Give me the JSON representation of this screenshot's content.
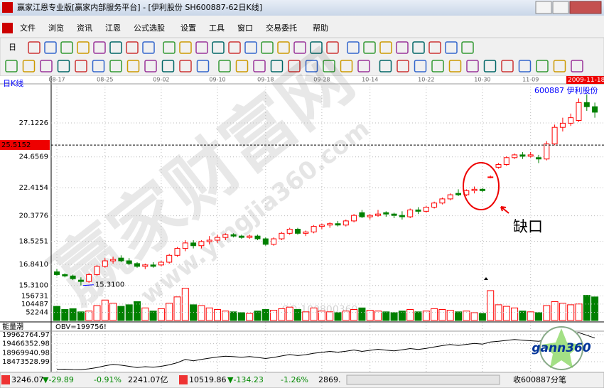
{
  "window": {
    "title": "赢家江恩专业版[赢家内部服务平台] - [伊利股份   SH600887-62日K线]"
  },
  "menu": [
    "文件",
    "浏览",
    "资讯",
    "江恩",
    "公式选股",
    "设置",
    "工具",
    "窗口",
    "交易委托",
    "帮助"
  ],
  "toolbar": {
    "period": "日"
  },
  "watermark": {
    "site": "赢家财富网",
    "url": "www.yingjia360.com",
    "qq": "QQ:100800360",
    "logo": "gann360"
  },
  "status_bar": {
    "sh_index": "3246.07",
    "sh_change": "▼-29.89",
    "sh_pct": "-0.91%",
    "sh_amount": "2241.07亿",
    "sz_index": "10519.86",
    "sz_change": "▼-134.23",
    "sz_pct": "-1.26%",
    "sz_amount": "2869.",
    "tick_info": "收600887分笔"
  },
  "chart_data": {
    "type": "candlestick",
    "title": "日K线",
    "stock_label": "600887  伊利股份",
    "categories": [
      "08-17",
      null,
      null,
      null,
      null,
      null,
      "08-25",
      null,
      null,
      null,
      null,
      null,
      null,
      "09-02",
      null,
      null,
      null,
      null,
      null,
      null,
      "09-10",
      null,
      null,
      null,
      null,
      null,
      "09-18",
      null,
      null,
      null,
      null,
      null,
      null,
      "09-28",
      null,
      null,
      null,
      null,
      null,
      "10-14",
      null,
      null,
      null,
      null,
      null,
      null,
      "10-22",
      null,
      null,
      null,
      null,
      null,
      null,
      "10-30",
      null,
      null,
      null,
      null,
      null,
      "11-09",
      null,
      null,
      null,
      null,
      null,
      null,
      null,
      null
    ],
    "open": [
      16.3,
      16.1,
      16.0,
      15.7,
      15.6,
      16.1,
      16.7,
      17.1,
      17.3,
      17.1,
      16.9,
      16.7,
      16.8,
      16.8,
      17.0,
      17.5,
      18.0,
      18.4,
      18.2,
      18.5,
      18.6,
      18.8,
      19.0,
      18.9,
      18.8,
      18.9,
      18.7,
      18.3,
      18.7,
      19.1,
      19.4,
      19.1,
      19.2,
      19.6,
      19.7,
      19.8,
      19.7,
      20.0,
      20.6,
      20.3,
      20.4,
      20.6,
      20.5,
      20.4,
      20.3,
      20.8,
      20.7,
      21.0,
      21.3,
      21.6,
      22.0,
      21.9,
      22.2,
      22.3,
      23.2,
      23.9,
      24.1,
      24.6,
      24.8,
      24.7,
      24.6,
      24.5,
      25.6,
      26.8,
      27.1,
      27.3,
      28.6,
      28.3
    ],
    "high": [
      16.5,
      16.2,
      16.1,
      15.9,
      16.2,
      16.8,
      17.3,
      17.4,
      17.5,
      17.3,
      17.0,
      16.9,
      17.0,
      17.1,
      17.6,
      18.1,
      18.6,
      18.6,
      18.6,
      18.9,
      19.0,
      19.1,
      19.1,
      19.0,
      19.0,
      19.0,
      18.8,
      18.8,
      19.2,
      19.5,
      19.5,
      19.3,
      19.7,
      19.8,
      19.9,
      20.0,
      20.1,
      20.5,
      20.8,
      20.5,
      20.8,
      20.7,
      20.6,
      20.7,
      20.9,
      21.0,
      21.1,
      21.4,
      21.7,
      22.0,
      22.3,
      22.3,
      22.5,
      22.4,
      23.3,
      24.2,
      24.7,
      24.9,
      25.0,
      25.0,
      24.8,
      25.8,
      27.0,
      27.5,
      27.8,
      28.9,
      29.2,
      28.6
    ],
    "low": [
      16.0,
      15.9,
      15.7,
      15.31,
      15.5,
      16.0,
      16.6,
      16.9,
      17.0,
      16.8,
      16.6,
      16.5,
      16.6,
      16.7,
      16.9,
      17.4,
      17.8,
      18.0,
      18.0,
      18.3,
      18.4,
      18.6,
      18.8,
      18.7,
      18.7,
      18.6,
      18.2,
      18.2,
      18.6,
      19.0,
      19.0,
      18.9,
      19.1,
      19.4,
      19.5,
      19.6,
      19.6,
      19.9,
      20.2,
      20.1,
      20.3,
      20.3,
      20.2,
      20.1,
      20.2,
      20.5,
      20.6,
      20.9,
      21.2,
      21.5,
      21.8,
      21.8,
      22.0,
      22.1,
      23.1,
      23.8,
      24.0,
      24.5,
      24.5,
      24.6,
      24.2,
      24.4,
      25.5,
      26.5,
      26.9,
      27.2,
      28.0,
      27.5
    ],
    "close": [
      16.1,
      16.0,
      15.8,
      15.6,
      16.1,
      16.7,
      17.1,
      17.2,
      17.1,
      16.9,
      16.7,
      16.8,
      16.7,
      17.0,
      17.5,
      18.0,
      18.4,
      18.2,
      18.5,
      18.6,
      18.8,
      19.0,
      18.9,
      18.8,
      18.9,
      18.7,
      18.3,
      18.7,
      19.1,
      19.4,
      19.1,
      19.2,
      19.6,
      19.7,
      19.8,
      19.7,
      20.0,
      20.4,
      20.3,
      20.4,
      20.5,
      20.5,
      20.4,
      20.3,
      20.8,
      20.7,
      21.0,
      21.3,
      21.6,
      21.9,
      21.9,
      22.2,
      22.3,
      22.2,
      23.2,
      24.1,
      24.6,
      24.8,
      24.7,
      24.8,
      24.5,
      25.6,
      26.8,
      27.1,
      27.5,
      28.6,
      28.3,
      27.9
    ],
    "up_color": "#ff0000",
    "down_color": "#008000",
    "ylim": [
      15.14,
      29.96
    ],
    "yticks": [
      {
        "value": 15.31,
        "label": "15.3100"
      },
      {
        "value": 16.841,
        "label": "16.8410"
      },
      18.5251,
      20.3776,
      22.4154,
      24.6569,
      27.1226
    ],
    "grid": true,
    "cursor": {
      "price": 25.5152,
      "date": "2009-11-18"
    },
    "low_marker": {
      "value": 15.31,
      "label": "15.3100"
    },
    "annotation": "缺口",
    "volume": {
      "values": [
        90000,
        70000,
        75000,
        55000,
        60000,
        95000,
        130000,
        110000,
        90000,
        100000,
        120000,
        80000,
        60000,
        75000,
        110000,
        150000,
        205000,
        100000,
        95000,
        80000,
        70000,
        60000,
        55000,
        50000,
        45000,
        60000,
        70000,
        65000,
        75000,
        85000,
        70000,
        55000,
        80000,
        60000,
        55000,
        50000,
        60000,
        70000,
        80000,
        65000,
        60000,
        55000,
        50000,
        60000,
        70000,
        55000,
        60000,
        75000,
        70000,
        65000,
        55000,
        60000,
        50000,
        45000,
        190000,
        100000,
        90000,
        80000,
        60000,
        55000,
        50000,
        95000,
        120000,
        110000,
        100000,
        105000,
        160000,
        150000
      ],
      "ylim": [
        0,
        208000
      ],
      "yticks": [
        52244,
        104487,
        156731
      ]
    },
    "obv": {
      "title": "能量潮",
      "label": "OBV=199756!",
      "color": "#000000",
      "values": [
        18050000,
        18060000,
        18040000,
        18030000,
        18080000,
        18150000,
        18250000,
        18330000,
        18280000,
        18220000,
        18150000,
        18200000,
        18170000,
        18220000,
        18300000,
        18420000,
        18600000,
        18520000,
        18600000,
        18670000,
        18730000,
        18780000,
        18750000,
        18720000,
        18760000,
        18710000,
        18650000,
        18710000,
        18790000,
        18870000,
        18810000,
        18860000,
        18940000,
        18990000,
        19040000,
        19000000,
        19050000,
        19120000,
        19040000,
        19100000,
        19160000,
        19110000,
        19070000,
        19130000,
        19200000,
        19150000,
        19210000,
        19290000,
        19360000,
        19420000,
        19370000,
        19430000,
        19480000,
        19440000,
        19560000,
        19600000,
        19650000,
        19700000,
        19660000,
        19630000,
        19600000,
        19680000,
        19800000,
        19900000,
        19980000,
        20080000,
        19930000,
        19780000
      ],
      "ylim": [
        18003000,
        20315000
      ],
      "yticks": [
        18473528.99,
        18969940.98,
        19466352.98,
        19962764.97
      ]
    }
  }
}
